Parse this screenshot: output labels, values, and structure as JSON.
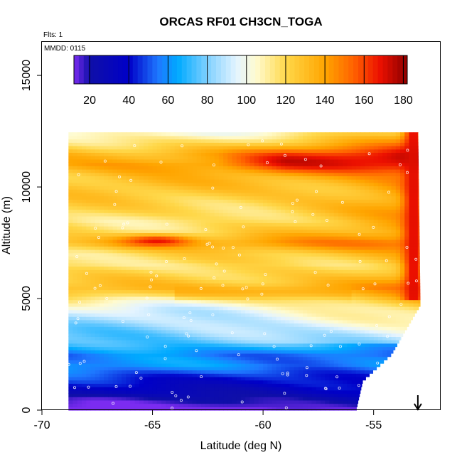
{
  "chart_data": {
    "type": "heatmap",
    "title": "ORCAS RF01 CH3CN_TOGA",
    "annotations": {
      "flights": "Flts: 1",
      "date": "MMDD: 0115"
    },
    "xlabel": "Latitude (deg N)",
    "ylabel": "Altitude (m)",
    "xlim": [
      -70,
      -52
    ],
    "ylim": [
      0,
      16500
    ],
    "x_ticks": [
      -70,
      -65,
      -60,
      -55
    ],
    "y_ticks": [
      0,
      5000,
      10000,
      15000
    ],
    "colorbar": {
      "range": [
        12,
        182
      ],
      "ticks": [
        20,
        40,
        60,
        80,
        100,
        120,
        140,
        160,
        180
      ],
      "stops": [
        {
          "v": 12,
          "c": "#7b2cf0"
        },
        {
          "v": 20,
          "c": "#0f0fa8"
        },
        {
          "v": 40,
          "c": "#0000c8"
        },
        {
          "v": 55,
          "c": "#1e78ff"
        },
        {
          "v": 65,
          "c": "#00aaff"
        },
        {
          "v": 80,
          "c": "#7fd0ff"
        },
        {
          "v": 95,
          "c": "#e4f4ff"
        },
        {
          "v": 105,
          "c": "#fffbd0"
        },
        {
          "v": 120,
          "c": "#ffd84a"
        },
        {
          "v": 140,
          "c": "#ffa500"
        },
        {
          "v": 155,
          "c": "#ff6000"
        },
        {
          "v": 168,
          "c": "#ec1000"
        },
        {
          "v": 182,
          "c": "#8b0000"
        }
      ]
    },
    "field_domain": {
      "lat_range": [
        -68.8,
        -52.9
      ],
      "alt_range": [
        0,
        12400
      ],
      "east_edge": [
        {
          "alt": 0,
          "lat": -55.8
        },
        {
          "alt": 1300,
          "lat": -55.5
        },
        {
          "alt": 2500,
          "lat": -54.2
        },
        {
          "alt": 4700,
          "lat": -52.9
        },
        {
          "alt": 12400,
          "lat": -53.0
        }
      ]
    },
    "altitude_profile": [
      {
        "alt": 0,
        "value": 15
      },
      {
        "alt": 500,
        "value": 22
      },
      {
        "alt": 1000,
        "value": 35
      },
      {
        "alt": 1500,
        "value": 45
      },
      {
        "alt": 2000,
        "value": 60
      },
      {
        "alt": 2500,
        "value": 55
      },
      {
        "alt": 3000,
        "value": 72
      },
      {
        "alt": 3500,
        "value": 80
      },
      {
        "alt": 4000,
        "value": 88
      },
      {
        "alt": 4500,
        "value": 95
      },
      {
        "alt": 5000,
        "value": 110
      },
      {
        "alt": 5500,
        "value": 128
      },
      {
        "alt": 6000,
        "value": 120
      },
      {
        "alt": 6500,
        "value": 112
      },
      {
        "alt": 7000,
        "value": 118
      },
      {
        "alt": 7500,
        "value": 135
      },
      {
        "alt": 8000,
        "value": 120
      },
      {
        "alt": 8500,
        "value": 115
      },
      {
        "alt": 9000,
        "value": 120
      },
      {
        "alt": 9500,
        "value": 122
      },
      {
        "alt": 10000,
        "value": 125
      },
      {
        "alt": 10500,
        "value": 128
      },
      {
        "alt": 11000,
        "value": 140
      },
      {
        "alt": 11500,
        "value": 135
      },
      {
        "alt": 12000,
        "value": 118
      },
      {
        "alt": 12400,
        "value": 105
      }
    ],
    "features": [
      {
        "name": "eastern-high-column",
        "lat": -53.2,
        "alt_range": [
          5000,
          12400
        ],
        "value": 170
      },
      {
        "name": "upper-band-east",
        "lat_range": [
          -62,
          -53
        ],
        "alt": 11200,
        "value": 165
      },
      {
        "name": "mid-level-max",
        "lat": -64.8,
        "alt": 7600,
        "value": 168
      },
      {
        "name": "band-5000m",
        "lat_range": [
          -64,
          -56
        ],
        "alt": 5300,
        "value": 140
      },
      {
        "name": "surface-min",
        "lat_range": [
          -68.8,
          -60
        ],
        "alt": 150,
        "value": 12
      }
    ],
    "flight_track_marker": {
      "lat": -53,
      "symbol": "down-arrow"
    }
  }
}
